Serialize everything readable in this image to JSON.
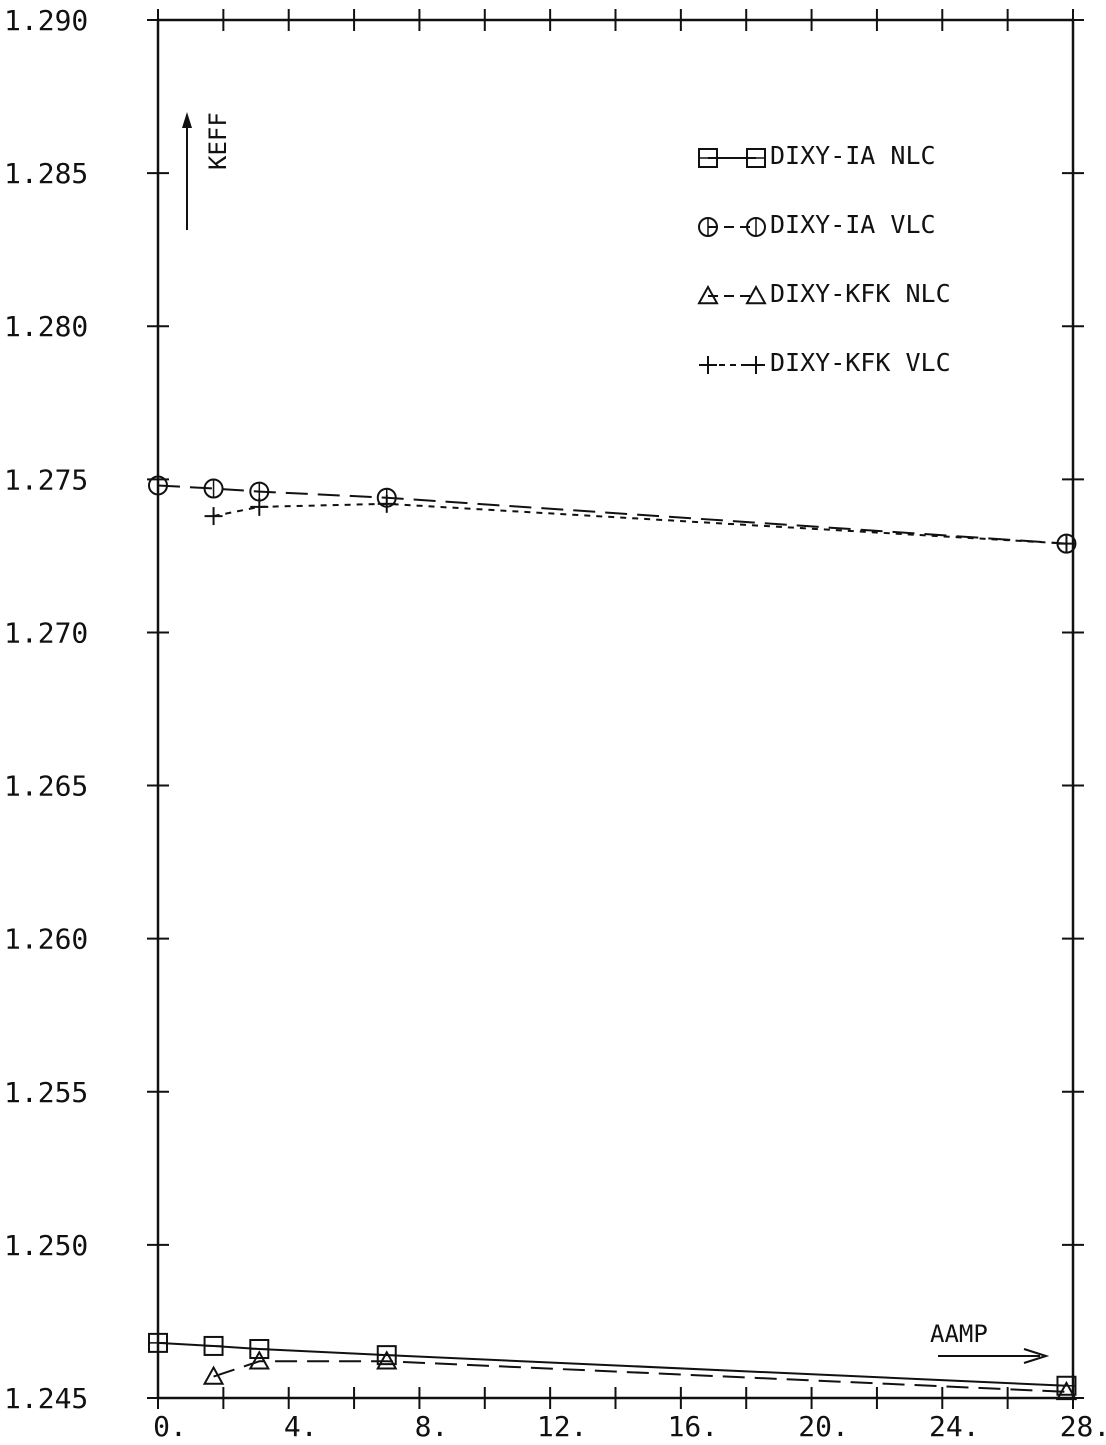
{
  "chart_data": {
    "type": "line",
    "title": "",
    "xlabel": "AAMP",
    "ylabel": "KEFF",
    "xlim": [
      0,
      28
    ],
    "ylim": [
      1.245,
      1.29
    ],
    "x_ticks": [
      "0.",
      "4.",
      "8.",
      "12.",
      "16.",
      "20.",
      "24.",
      "28."
    ],
    "y_ticks": [
      "1.245",
      "1.250",
      "1.255",
      "1.260",
      "1.265",
      "1.270",
      "1.275",
      "1.280",
      "1.285",
      "1.290"
    ],
    "grid": false,
    "legend_position": "top-right",
    "series": [
      {
        "name": "DIXY-IA NLC",
        "marker": "square",
        "line": "solid",
        "x": [
          0,
          1.7,
          3.1,
          7.0,
          27.8
        ],
        "y": [
          1.2468,
          1.2467,
          1.2466,
          1.2464,
          1.2454
        ]
      },
      {
        "name": "DIXY-IA VLC",
        "marker": "circle",
        "line": "dashed",
        "x": [
          0,
          1.7,
          3.1,
          7.0,
          27.8
        ],
        "y": [
          1.2748,
          1.2747,
          1.2746,
          1.2744,
          1.2729
        ]
      },
      {
        "name": "DIXY-KFK NLC",
        "marker": "triangle",
        "line": "dashed",
        "x": [
          1.7,
          3.1,
          7.0,
          27.8
        ],
        "y": [
          1.2457,
          1.2462,
          1.2462,
          1.2452
        ]
      },
      {
        "name": "DIXY-KFK VLC",
        "marker": "plus",
        "line": "dotted",
        "x": [
          1.7,
          3.1,
          7.0,
          27.8
        ],
        "y": [
          1.2738,
          1.2741,
          1.2742,
          1.2729
        ]
      }
    ]
  },
  "colors": {
    "ink": "#111111",
    "background": "#ffffff"
  }
}
